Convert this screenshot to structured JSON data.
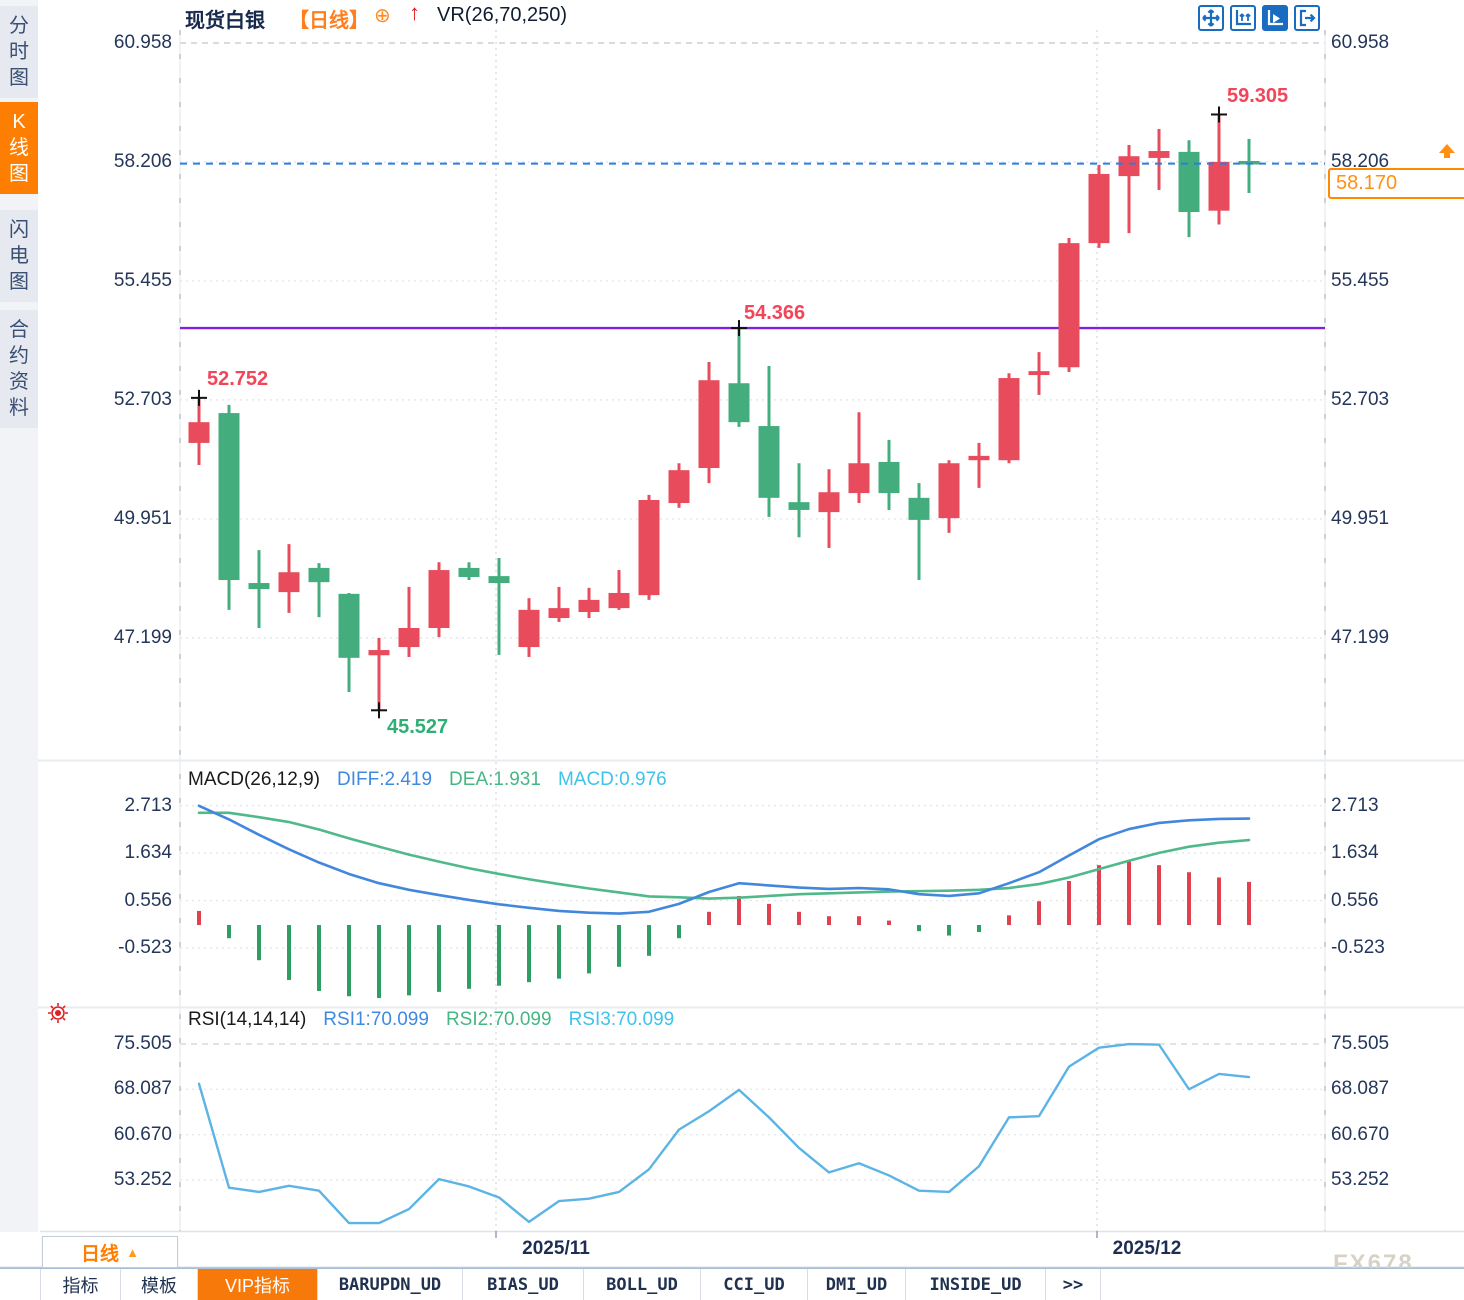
{
  "header": {
    "symbol": "现货白银",
    "period_tag": "【日线】",
    "plus_icon": "⊕",
    "trend_arrow": "↑",
    "indicator": "VR(26,70,250)"
  },
  "toolbar": {
    "icons": [
      {
        "name": "pan-crosshair-icon",
        "active": false
      },
      {
        "name": "axis-scale-icon",
        "active": false
      },
      {
        "name": "chart-playback-icon",
        "active": true
      },
      {
        "name": "exit-chart-icon",
        "active": false
      }
    ]
  },
  "sidebar": {
    "items": [
      {
        "label": "分时图",
        "active": false
      },
      {
        "label": "K线图",
        "active": true
      },
      {
        "label": "闪电图",
        "active": false
      },
      {
        "label": "合约资料",
        "active": false
      }
    ]
  },
  "period_selector": {
    "label": "日线",
    "arrow": "▲"
  },
  "bottom_tabs": {
    "items": [
      {
        "label": "指标",
        "active": false
      },
      {
        "label": "模板",
        "active": false
      },
      {
        "label": "VIP指标",
        "active": true
      },
      {
        "label": "BARUPDN_UD",
        "active": false
      },
      {
        "label": "BIAS_UD",
        "active": false
      },
      {
        "label": "BOLL_UD",
        "active": false
      },
      {
        "label": "CCI_UD",
        "active": false
      },
      {
        "label": "DMI_UD",
        "active": false
      },
      {
        "label": "INSIDE_UD",
        "active": false
      },
      {
        "label": ">>",
        "active": false
      }
    ]
  },
  "watermark": "FX678",
  "chart_data": [
    {
      "type": "candlestick",
      "title": "现货白银 日线",
      "up_color": "#e84c5c",
      "down_color": "#44ad7e",
      "y_ticks": [
        "60.958",
        "58.206",
        "55.455",
        "52.703",
        "49.951",
        "47.199"
      ],
      "x_labels": [
        {
          "text": "2025/11"
        },
        {
          "text": "2025/12"
        }
      ],
      "grid": true,
      "support_line": {
        "value": 54.366,
        "color": "#7e22dd"
      },
      "current_price": {
        "value": "58.170",
        "line_color": "#2b7de0",
        "box_color": "#ff8a00"
      },
      "annotations": [
        {
          "text": "52.752",
          "color": "#f2455a",
          "index": 0,
          "price": 52.752,
          "placement": "above-right"
        },
        {
          "text": "45.527",
          "color": "#2fae75",
          "index": 6,
          "price": 45.527,
          "placement": "below-right"
        },
        {
          "text": "54.366",
          "color": "#f2455a",
          "index": 18,
          "price": 54.366,
          "placement": "above-right"
        },
        {
          "text": "59.305",
          "color": "#f2455a",
          "index": 34,
          "price": 59.305,
          "placement": "above-right"
        }
      ],
      "candles": [
        {
          "o": 51.71,
          "h": 52.752,
          "l": 51.2,
          "c": 52.19,
          "dir": "up"
        },
        {
          "o": 52.4,
          "h": 52.59,
          "l": 47.85,
          "c": 48.54,
          "dir": "down"
        },
        {
          "o": 48.47,
          "h": 49.23,
          "l": 47.43,
          "c": 48.33,
          "dir": "down"
        },
        {
          "o": 48.26,
          "h": 49.37,
          "l": 47.78,
          "c": 48.72,
          "dir": "up"
        },
        {
          "o": 48.82,
          "h": 48.93,
          "l": 47.68,
          "c": 48.49,
          "dir": "down"
        },
        {
          "o": 48.22,
          "h": 48.24,
          "l": 45.95,
          "c": 46.74,
          "dir": "down"
        },
        {
          "o": 46.8,
          "h": 47.2,
          "l": 45.527,
          "c": 46.92,
          "dir": "up"
        },
        {
          "o": 46.99,
          "h": 48.38,
          "l": 46.76,
          "c": 47.43,
          "dir": "up"
        },
        {
          "o": 47.43,
          "h": 48.95,
          "l": 47.22,
          "c": 48.77,
          "dir": "up"
        },
        {
          "o": 48.82,
          "h": 48.95,
          "l": 48.54,
          "c": 48.61,
          "dir": "down"
        },
        {
          "o": 48.63,
          "h": 49.05,
          "l": 46.81,
          "c": 48.47,
          "dir": "down"
        },
        {
          "o": 46.99,
          "h": 48.12,
          "l": 46.76,
          "c": 47.85,
          "dir": "up"
        },
        {
          "o": 47.66,
          "h": 48.38,
          "l": 47.57,
          "c": 47.89,
          "dir": "up"
        },
        {
          "o": 47.8,
          "h": 48.36,
          "l": 47.66,
          "c": 48.08,
          "dir": "up"
        },
        {
          "o": 47.89,
          "h": 48.77,
          "l": 47.85,
          "c": 48.24,
          "dir": "up"
        },
        {
          "o": 48.19,
          "h": 50.51,
          "l": 48.08,
          "c": 50.39,
          "dir": "up"
        },
        {
          "o": 50.32,
          "h": 51.24,
          "l": 50.21,
          "c": 51.08,
          "dir": "up"
        },
        {
          "o": 51.13,
          "h": 53.58,
          "l": 50.78,
          "c": 53.16,
          "dir": "up"
        },
        {
          "o": 53.09,
          "h": 54.366,
          "l": 52.08,
          "c": 52.19,
          "dir": "down"
        },
        {
          "o": 52.1,
          "h": 53.49,
          "l": 50.0,
          "c": 50.44,
          "dir": "down"
        },
        {
          "o": 50.34,
          "h": 51.24,
          "l": 49.53,
          "c": 50.16,
          "dir": "down"
        },
        {
          "o": 50.11,
          "h": 51.1,
          "l": 49.28,
          "c": 50.57,
          "dir": "up"
        },
        {
          "o": 50.55,
          "h": 52.42,
          "l": 50.32,
          "c": 51.24,
          "dir": "up"
        },
        {
          "o": 51.27,
          "h": 51.78,
          "l": 50.16,
          "c": 50.55,
          "dir": "down"
        },
        {
          "o": 50.44,
          "h": 50.78,
          "l": 48.54,
          "c": 49.93,
          "dir": "down"
        },
        {
          "o": 49.97,
          "h": 51.31,
          "l": 49.63,
          "c": 51.24,
          "dir": "up"
        },
        {
          "o": 51.31,
          "h": 51.71,
          "l": 50.67,
          "c": 51.41,
          "dir": "up"
        },
        {
          "o": 51.31,
          "h": 53.32,
          "l": 51.24,
          "c": 53.21,
          "dir": "up"
        },
        {
          "o": 53.28,
          "h": 53.81,
          "l": 52.82,
          "c": 53.37,
          "dir": "up"
        },
        {
          "o": 53.46,
          "h": 56.45,
          "l": 53.35,
          "c": 56.33,
          "dir": "up"
        },
        {
          "o": 56.33,
          "h": 58.14,
          "l": 56.22,
          "c": 57.93,
          "dir": "up"
        },
        {
          "o": 57.88,
          "h": 58.6,
          "l": 56.56,
          "c": 58.34,
          "dir": "up"
        },
        {
          "o": 58.3,
          "h": 58.97,
          "l": 57.56,
          "c": 58.46,
          "dir": "up"
        },
        {
          "o": 58.44,
          "h": 58.71,
          "l": 56.47,
          "c": 57.05,
          "dir": "down"
        },
        {
          "o": 57.08,
          "h": 59.305,
          "l": 56.76,
          "c": 58.21,
          "dir": "up"
        },
        {
          "o": 58.23,
          "h": 58.74,
          "l": 57.49,
          "c": 58.17,
          "dir": "down"
        }
      ]
    },
    {
      "type": "macd",
      "title": "MACD(26,12,9)",
      "legend": [
        {
          "text": "DIFF:2.419",
          "color": "#3f8ae0"
        },
        {
          "text": "DEA:1.931",
          "color": "#46b783"
        },
        {
          "text": "MACD:0.976",
          "color": "#3ec3ea"
        }
      ],
      "y_ticks": [
        "2.713",
        "1.634",
        "0.556",
        "-0.523"
      ],
      "diff": [
        2.71,
        2.4,
        2.05,
        1.72,
        1.42,
        1.16,
        0.95,
        0.8,
        0.68,
        0.57,
        0.47,
        0.39,
        0.32,
        0.28,
        0.26,
        0.3,
        0.48,
        0.75,
        0.95,
        0.9,
        0.85,
        0.82,
        0.84,
        0.81,
        0.7,
        0.66,
        0.72,
        0.95,
        1.2,
        1.58,
        1.95,
        2.18,
        2.32,
        2.38,
        2.41,
        2.419
      ],
      "dea": [
        2.55,
        2.55,
        2.45,
        2.34,
        2.17,
        1.97,
        1.78,
        1.6,
        1.44,
        1.29,
        1.16,
        1.04,
        0.93,
        0.83,
        0.74,
        0.65,
        0.63,
        0.6,
        0.62,
        0.66,
        0.7,
        0.72,
        0.74,
        0.76,
        0.77,
        0.78,
        0.8,
        0.84,
        0.93,
        1.08,
        1.27,
        1.46,
        1.64,
        1.78,
        1.87,
        1.931
      ],
      "hist": [
        0.32,
        -0.3,
        -0.8,
        -1.25,
        -1.5,
        -1.62,
        -1.66,
        -1.6,
        -1.52,
        -1.45,
        -1.38,
        -1.3,
        -1.22,
        -1.1,
        -0.95,
        -0.7,
        -0.3,
        0.3,
        0.66,
        0.48,
        0.3,
        0.2,
        0.2,
        0.1,
        -0.14,
        -0.24,
        -0.16,
        0.22,
        0.54,
        1.0,
        1.36,
        1.44,
        1.36,
        1.2,
        1.08,
        0.98
      ]
    },
    {
      "type": "rsi",
      "title": "RSI(14,14,14)",
      "legend": [
        {
          "text": "RSI1:70.099",
          "color": "#3f8ae0"
        },
        {
          "text": "RSI2:70.099",
          "color": "#46b783"
        },
        {
          "text": "RSI3:70.099",
          "color": "#3ec3ea"
        }
      ],
      "y_ticks": [
        "75.505",
        "68.087",
        "60.670",
        "53.252"
      ],
      "rsi": [
        69.0,
        52.0,
        51.3,
        52.3,
        51.5,
        46.2,
        46.2,
        48.5,
        53.4,
        52.2,
        50.4,
        46.4,
        49.8,
        50.2,
        51.3,
        55.0,
        61.5,
        64.5,
        68.0,
        63.5,
        58.5,
        54.5,
        56.0,
        54.0,
        51.5,
        51.3,
        55.5,
        63.5,
        63.7,
        71.8,
        74.9,
        75.5,
        75.4,
        68.1,
        70.6,
        70.099
      ]
    }
  ]
}
